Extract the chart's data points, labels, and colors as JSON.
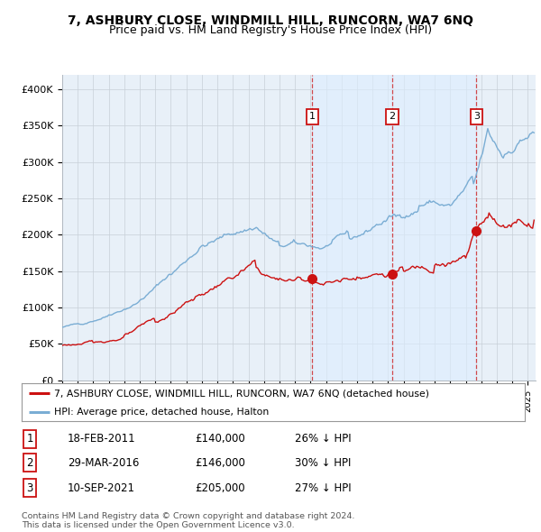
{
  "title": "7, ASHBURY CLOSE, WINDMILL HILL, RUNCORN, WA7 6NQ",
  "subtitle": "Price paid vs. HM Land Registry's House Price Index (HPI)",
  "ylim": [
    0,
    420000
  ],
  "yticks": [
    0,
    50000,
    100000,
    150000,
    200000,
    250000,
    300000,
    350000,
    400000
  ],
  "ytick_labels": [
    "£0",
    "£50K",
    "£100K",
    "£150K",
    "£200K",
    "£250K",
    "£300K",
    "£350K",
    "£400K"
  ],
  "xlim_start": 1995.0,
  "xlim_end": 2025.5,
  "hpi_color": "#7aadd4",
  "price_color": "#cc1111",
  "bg_color": "#e8f0f8",
  "shade_color": "#ddeeff",
  "transactions": [
    {
      "date": 2011.12,
      "price": 140000,
      "label": "1"
    },
    {
      "date": 2016.24,
      "price": 146000,
      "label": "2"
    },
    {
      "date": 2021.69,
      "price": 205000,
      "label": "3"
    }
  ],
  "legend_property": "7, ASHBURY CLOSE, WINDMILL HILL, RUNCORN, WA7 6NQ (detached house)",
  "legend_hpi": "HPI: Average price, detached house, Halton",
  "table_rows": [
    [
      "1",
      "18-FEB-2011",
      "£140,000",
      "26% ↓ HPI"
    ],
    [
      "2",
      "29-MAR-2016",
      "£146,000",
      "30% ↓ HPI"
    ],
    [
      "3",
      "10-SEP-2021",
      "£205,000",
      "27% ↓ HPI"
    ]
  ],
  "footer": "Contains HM Land Registry data © Crown copyright and database right 2024.\nThis data is licensed under the Open Government Licence v3.0.",
  "title_fontsize": 10,
  "subtitle_fontsize": 9
}
